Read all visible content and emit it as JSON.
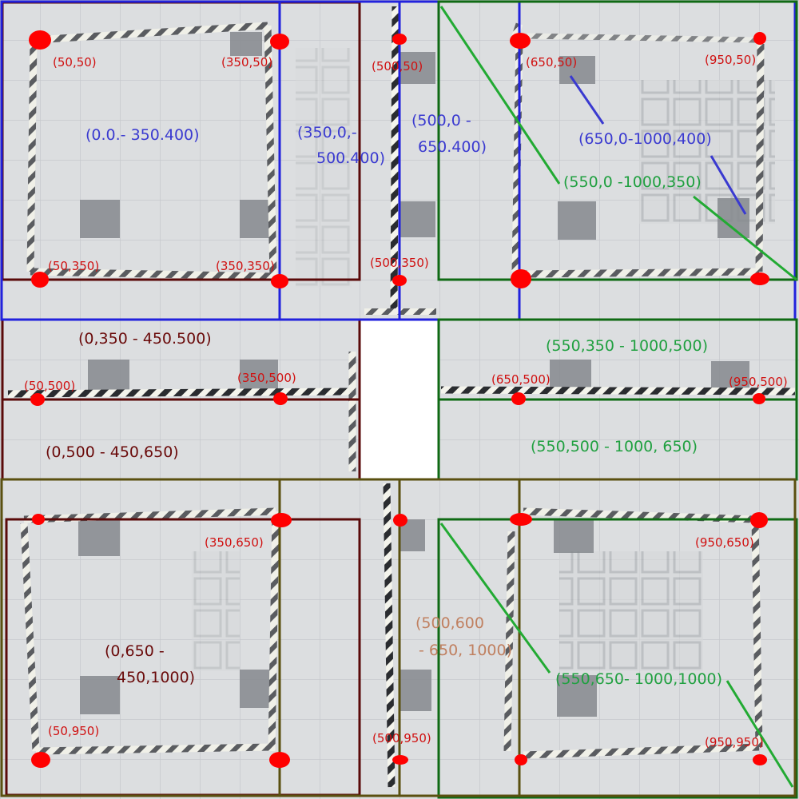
{
  "colors": {
    "floor": "#dcdee0",
    "floor_light": "#e4e6e8",
    "seam": "#c3c6ca",
    "dark_square": "#85888d",
    "tape_light": "#f4f4ec",
    "tape_dark": "#2a2c30",
    "marker": "#ff0000",
    "point_label": "#d01010",
    "maroon": "#5a0a0a",
    "blue": "#2222dd",
    "green": "#0f6a14",
    "bright_green": "#22aa33",
    "olive": "#5a5010",
    "tan": "#c08060",
    "blue_text": "#3a3ad0",
    "green_text": "#20a040",
    "maroon_text": "#6a0a0a"
  },
  "point_labels": {
    "p_50_50": "(50,50)",
    "p_350_50": "(350,50)",
    "p_500_50": "(500,50)",
    "p_650_50": "(650,50)",
    "p_950_50": "(950,50)",
    "p_50_350": "(50,350)",
    "p_350_350": "(350,350)",
    "p_500_350": "(500,350)",
    "p_50_500": "(50,500)",
    "p_350_500": "(350,500)",
    "p_650_500": "(650,500)",
    "p_950_500": "(950,500)",
    "p_350_650": "(350,650)",
    "p_950_650": "(950,650)",
    "p_50_950": "(50,950)",
    "p_500_950": "(500,950)",
    "p_950_950": "(950,950)"
  },
  "region_labels": {
    "r_0_0_350_400": "(0.0.- 350.400)",
    "r_350_0_a": "(350,0,-",
    "r_350_0_b": "500.400)",
    "r_500_0_a": "(500,0 -",
    "r_500_0_b": "650.400)",
    "r_650_0": "(650,0-1000,400)",
    "r_550_0": "(550,0 -1000,350)",
    "r_0_350": "(0,350 - 450.500)",
    "r_550_350": "(550,350 - 1000,500)",
    "r_0_500": "(0,500 - 450,650)",
    "r_550_500": "(550,500 - 1000, 650)",
    "r_0_650_a": "(0,650 -",
    "r_0_650_b": "450,1000)",
    "r_500_600_a": "(500,600",
    "r_500_600_b": "- 650, 1000)",
    "r_550_650": "(550,650- 1000,1000)"
  }
}
